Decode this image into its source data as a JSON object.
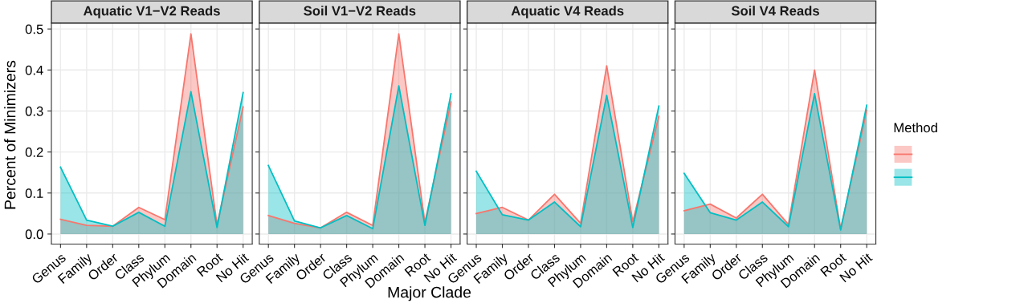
{
  "chart_data": [
    {
      "type": "area",
      "title": "Aquatic V1−V2 Reads",
      "ylabel": "Percent of Minimizers",
      "categories": [
        "Genus",
        "Family",
        "Order",
        "Class",
        "Phylum",
        "Domain",
        "Root",
        "No Hit"
      ],
      "ylim": [
        -0.0245,
        0.5145
      ],
      "yticks": [
        {
          "value": 0,
          "label": "0.0"
        },
        0.1,
        0.2,
        0.3,
        0.4,
        0.5
      ],
      "grid": true,
      "legend": false,
      "series": [
        {
          "color": "#f8766d",
          "values": [
            0.036,
            0.021,
            0.019,
            0.065,
            0.035,
            0.488,
            0.022,
            0.31
          ]
        },
        {
          "color": "#00bfc4",
          "values": [
            0.163,
            0.034,
            0.019,
            0.053,
            0.019,
            0.347,
            0.016,
            0.345
          ]
        }
      ]
    },
    {
      "type": "area",
      "title": "Soil V1−V2 Reads",
      "xlabel": "Major Clade",
      "categories": [
        "Genus",
        "Family",
        "Order",
        "Class",
        "Phylum",
        "Domain",
        "Root",
        "No Hit"
      ],
      "ylim": [
        -0.0245,
        0.5145
      ],
      "yticks": [
        0,
        0.1,
        0.2,
        0.3,
        0.4,
        0.5
      ],
      "grid": true,
      "legend": false,
      "tick_labels": "x",
      "series": [
        {
          "color": "#f8766d",
          "values": [
            0.045,
            0.026,
            0.015,
            0.053,
            0.021,
            0.488,
            0.028,
            0.322
          ]
        },
        {
          "color": "#00bfc4",
          "values": [
            0.167,
            0.032,
            0.015,
            0.045,
            0.013,
            0.361,
            0.021,
            0.342
          ]
        }
      ]
    },
    {
      "type": "area",
      "title": "Aquatic V4 Reads",
      "categories": [
        "Genus",
        "Family",
        "Order",
        "Class",
        "Phylum",
        "Domain",
        "Root",
        "No Hit"
      ],
      "ylim": [
        -0.0245,
        0.5145
      ],
      "yticks": [
        0,
        0.1,
        0.2,
        0.3,
        0.4,
        0.5
      ],
      "grid": true,
      "legend": false,
      "tick_labels": "x",
      "series": [
        {
          "color": "#f8766d",
          "values": [
            0.05,
            0.065,
            0.034,
            0.097,
            0.026,
            0.41,
            0.03,
            0.287
          ]
        },
        {
          "color": "#00bfc4",
          "values": [
            0.153,
            0.047,
            0.034,
            0.078,
            0.018,
            0.338,
            0.016,
            0.312
          ]
        }
      ]
    },
    {
      "type": "area",
      "title": "Soil V4 Reads",
      "categories": [
        "Genus",
        "Family",
        "Order",
        "Class",
        "Phylum",
        "Domain",
        "Root",
        "No Hit"
      ],
      "ylim": [
        -0.0245,
        0.5145
      ],
      "yticks": [
        0,
        0.1,
        0.2,
        0.3,
        0.4,
        0.5
      ],
      "grid": true,
      "legend": false,
      "legend_title": "Method",
      "tick_labels": "x",
      "series": [
        {
          "color": "#f8766d",
          "values": [
            0.057,
            0.073,
            0.039,
            0.097,
            0.023,
            0.4,
            0.012,
            0.302
          ]
        },
        {
          "color": "#00bfc4",
          "values": [
            0.148,
            0.052,
            0.034,
            0.078,
            0.018,
            0.342,
            0.01,
            0.314
          ]
        }
      ]
    }
  ]
}
